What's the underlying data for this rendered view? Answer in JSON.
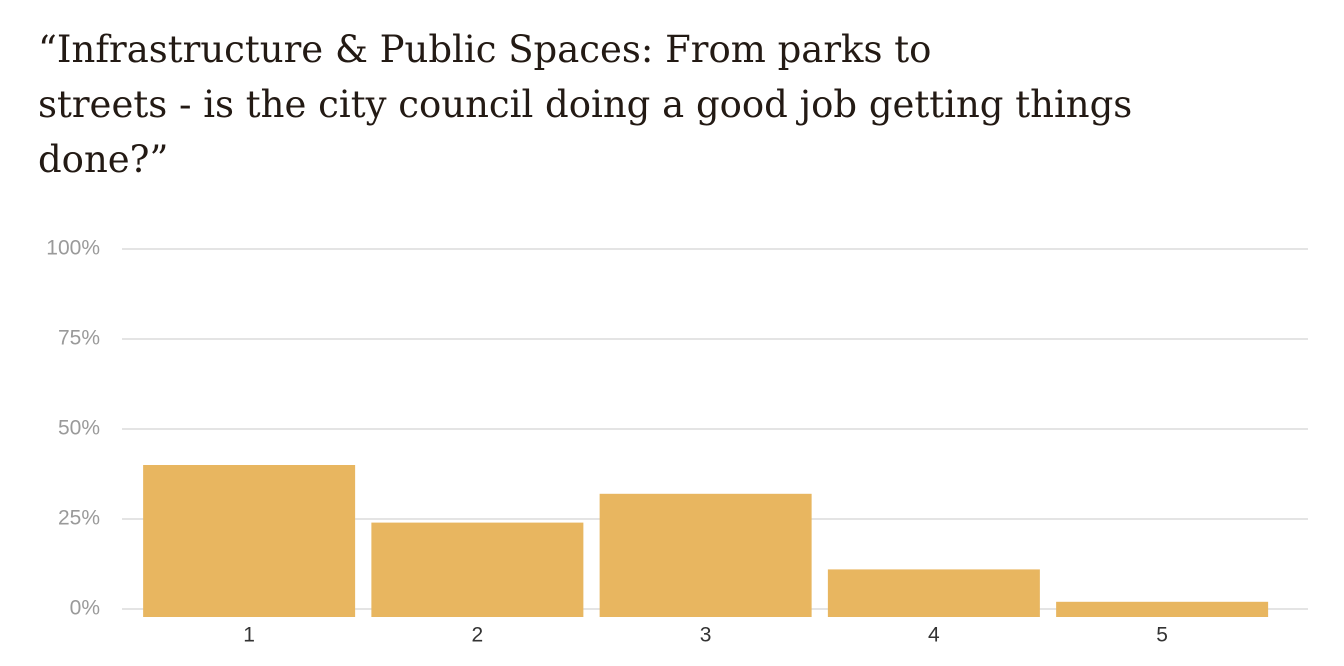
{
  "chart_data": {
    "type": "bar",
    "title": [
      "“Infrastructure & Public Spaces: From parks to",
      "streets - is the city council doing a good job getting things",
      "done?”"
    ],
    "categories": [
      "1",
      "2",
      "3",
      "4",
      "5"
    ],
    "values": [
      40,
      24,
      32,
      11,
      2
    ],
    "color": "#e8b660",
    "ylim": [
      0,
      100
    ],
    "yticks": [
      {
        "value": 0,
        "label": "0%"
      },
      {
        "value": 25,
        "label": "25%"
      },
      {
        "value": 50,
        "label": "50%"
      },
      {
        "value": 75,
        "label": "75%"
      },
      {
        "value": 100,
        "label": "100%"
      }
    ],
    "grid": true
  }
}
